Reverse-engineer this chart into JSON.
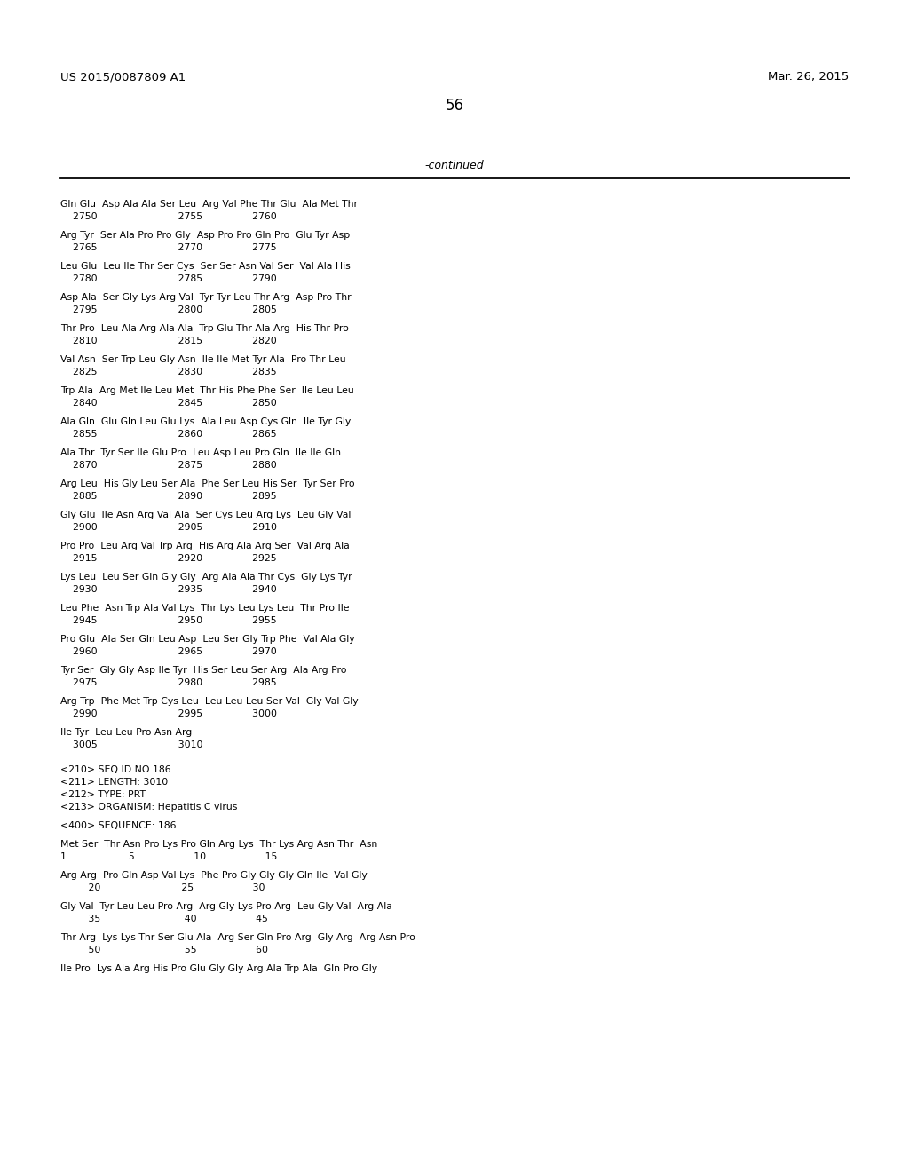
{
  "background_color": "#ffffff",
  "text_color": "#000000",
  "header_left": "US 2015/0087809 A1",
  "header_right": "Mar. 26, 2015",
  "page_number": "56",
  "continued_label": "-continued",
  "content": [
    "Gln Glu  Asp Ala Ala Ser Leu  Arg Val Phe Thr Glu  Ala Met Thr",
    "    2750                          2755                2760",
    "",
    "Arg Tyr  Ser Ala Pro Pro Gly  Asp Pro Pro Gln Pro  Glu Tyr Asp",
    "    2765                          2770                2775",
    "",
    "Leu Glu  Leu Ile Thr Ser Cys  Ser Ser Asn Val Ser  Val Ala His",
    "    2780                          2785                2790",
    "",
    "Asp Ala  Ser Gly Lys Arg Val  Tyr Tyr Leu Thr Arg  Asp Pro Thr",
    "    2795                          2800                2805",
    "",
    "Thr Pro  Leu Ala Arg Ala Ala  Trp Glu Thr Ala Arg  His Thr Pro",
    "    2810                          2815                2820",
    "",
    "Val Asn  Ser Trp Leu Gly Asn  Ile Ile Met Tyr Ala  Pro Thr Leu",
    "    2825                          2830                2835",
    "",
    "Trp Ala  Arg Met Ile Leu Met  Thr His Phe Phe Ser  Ile Leu Leu",
    "    2840                          2845                2850",
    "",
    "Ala Gln  Glu Gln Leu Glu Lys  Ala Leu Asp Cys Gln  Ile Tyr Gly",
    "    2855                          2860                2865",
    "",
    "Ala Thr  Tyr Ser Ile Glu Pro  Leu Asp Leu Pro Gln  Ile Ile Gln",
    "    2870                          2875                2880",
    "",
    "Arg Leu  His Gly Leu Ser Ala  Phe Ser Leu His Ser  Tyr Ser Pro",
    "    2885                          2890                2895",
    "",
    "Gly Glu  Ile Asn Arg Val Ala  Ser Cys Leu Arg Lys  Leu Gly Val",
    "    2900                          2905                2910",
    "",
    "Pro Pro  Leu Arg Val Trp Arg  His Arg Ala Arg Ser  Val Arg Ala",
    "    2915                          2920                2925",
    "",
    "Lys Leu  Leu Ser Gln Gly Gly  Arg Ala Ala Thr Cys  Gly Lys Tyr",
    "    2930                          2935                2940",
    "",
    "Leu Phe  Asn Trp Ala Val Lys  Thr Lys Leu Lys Leu  Thr Pro Ile",
    "    2945                          2950                2955",
    "",
    "Pro Glu  Ala Ser Gln Leu Asp  Leu Ser Gly Trp Phe  Val Ala Gly",
    "    2960                          2965                2970",
    "",
    "Tyr Ser  Gly Gly Asp Ile Tyr  His Ser Leu Ser Arg  Ala Arg Pro",
    "    2975                          2980                2985",
    "",
    "Arg Trp  Phe Met Trp Cys Leu  Leu Leu Leu Ser Val  Gly Val Gly",
    "    2990                          2995                3000",
    "",
    "Ile Tyr  Leu Leu Pro Asn Arg",
    "    3005                          3010",
    "",
    "",
    "<210> SEQ ID NO 186",
    "<211> LENGTH: 3010",
    "<212> TYPE: PRT",
    "<213> ORGANISM: Hepatitis C virus",
    "",
    "<400> SEQUENCE: 186",
    "",
    "Met Ser  Thr Asn Pro Lys Pro Gln Arg Lys  Thr Lys Arg Asn Thr  Asn",
    "1                    5                   10                   15",
    "",
    "Arg Arg  Pro Gln Asp Val Lys  Phe Pro Gly Gly Gly Gln Ile  Val Gly",
    "         20                          25                   30",
    "",
    "Gly Val  Tyr Leu Leu Pro Arg  Arg Gly Lys Pro Arg  Leu Gly Val  Arg Ala",
    "         35                           40                   45",
    "",
    "Thr Arg  Lys Lys Thr Ser Glu Ala  Arg Ser Gln Pro Arg  Gly Arg  Arg Asn Pro",
    "         50                           55                   60",
    "",
    "Ile Pro  Lys Ala Arg His Pro Glu Gly Gly Arg Ala Trp Ala  Gln Pro Gly"
  ]
}
